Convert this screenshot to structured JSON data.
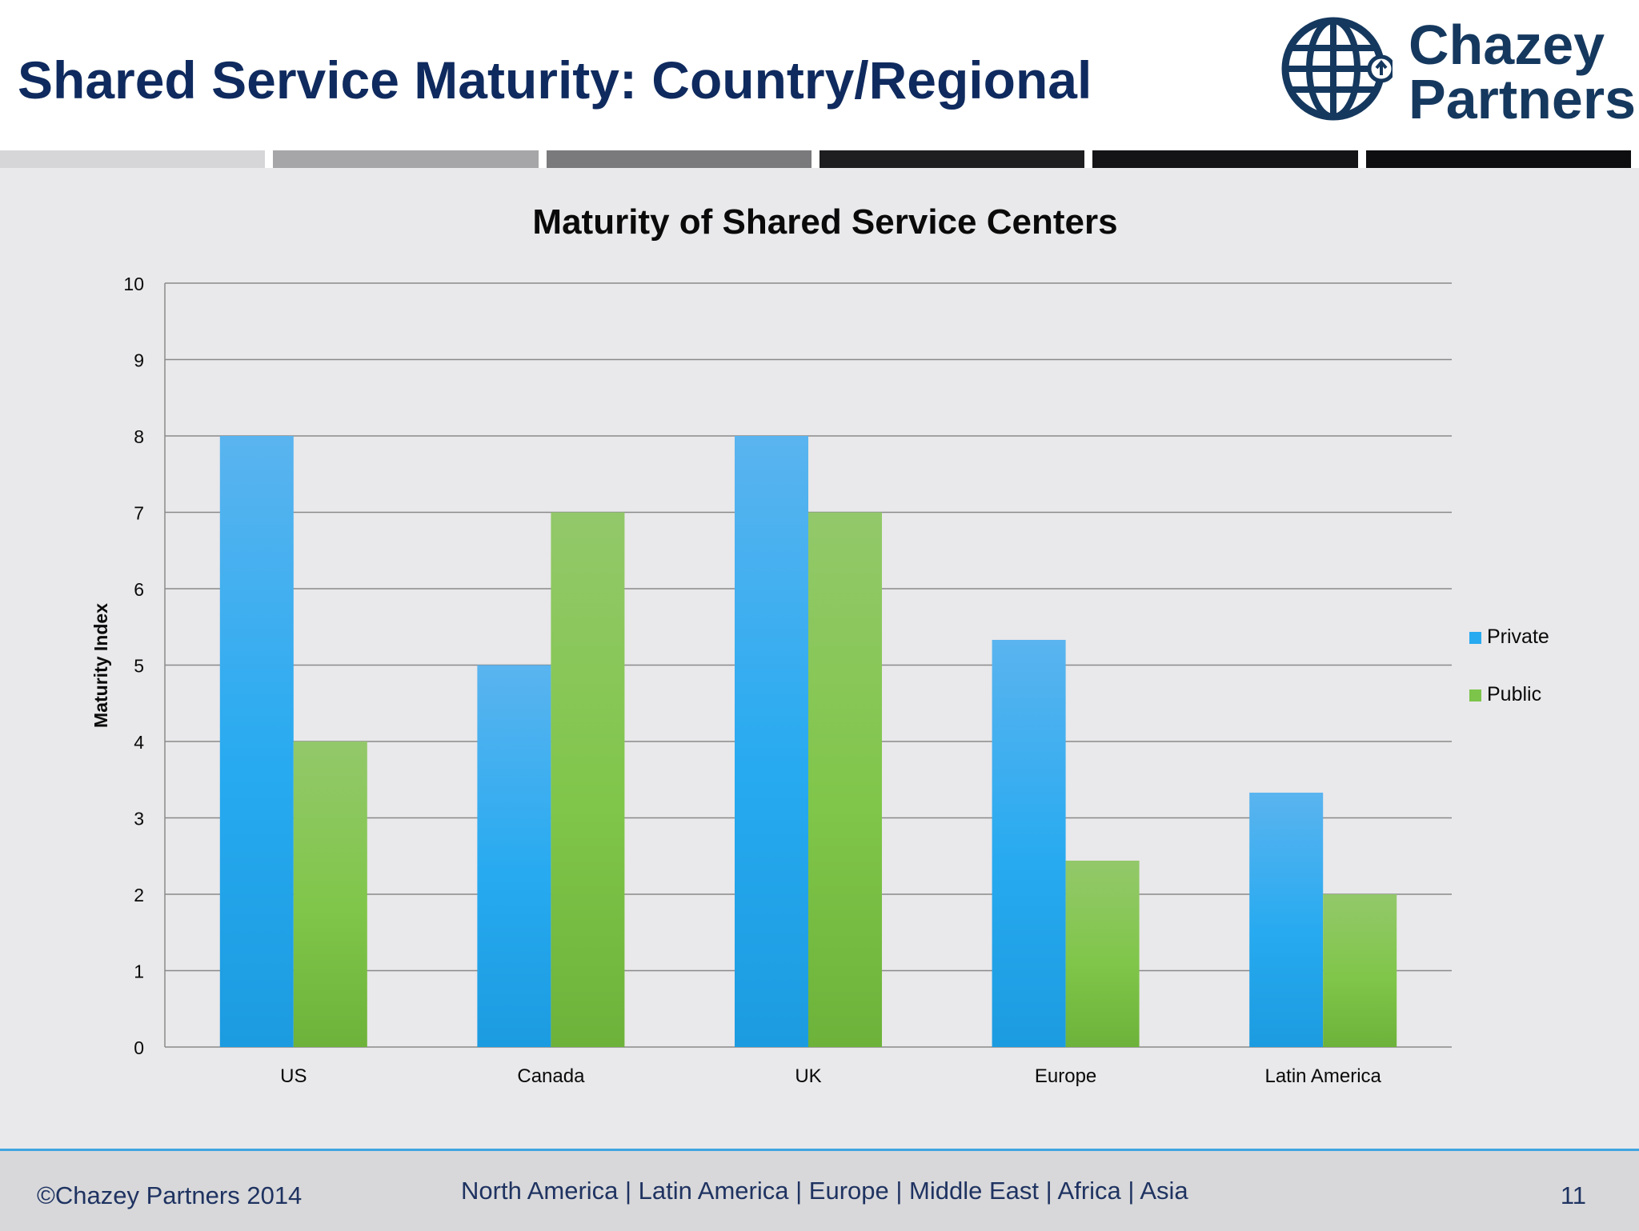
{
  "slide": {
    "title": "Shared Service Maturity: Country/Regional",
    "page_number": "11"
  },
  "logo": {
    "line1": "Chazey",
    "line2": "Partners",
    "icon": "globe-icon"
  },
  "footer": {
    "copyright": "©Chazey Partners 2014",
    "regions": "North America | Latin America | Europe | Middle East | Africa | Asia"
  },
  "colors": {
    "title": "#0f2a5e",
    "private": "#27aaf0",
    "public": "#7cc44a",
    "stripes": [
      "#d6d6d8",
      "#a6a6a8",
      "#7a797b",
      "#1e1e20",
      "#141416",
      "#0e0e10"
    ]
  },
  "chart_data": {
    "type": "bar",
    "title": "Maturity of Shared Service Centers",
    "xlabel": "",
    "ylabel": "Maturity Index",
    "ylim": [
      0,
      10
    ],
    "yticks": [
      0,
      1,
      2,
      3,
      4,
      5,
      6,
      7,
      8,
      9,
      10
    ],
    "grid": true,
    "legend_position": "right",
    "categories": [
      "US",
      "Canada",
      "UK",
      "Europe",
      "Latin America"
    ],
    "series": [
      {
        "name": "Private",
        "color": "#27aaf0",
        "values": [
          8,
          5,
          8,
          5.33,
          3.33
        ]
      },
      {
        "name": "Public",
        "color": "#7cc44a",
        "values": [
          4,
          7,
          7,
          2.44,
          2
        ]
      }
    ]
  }
}
